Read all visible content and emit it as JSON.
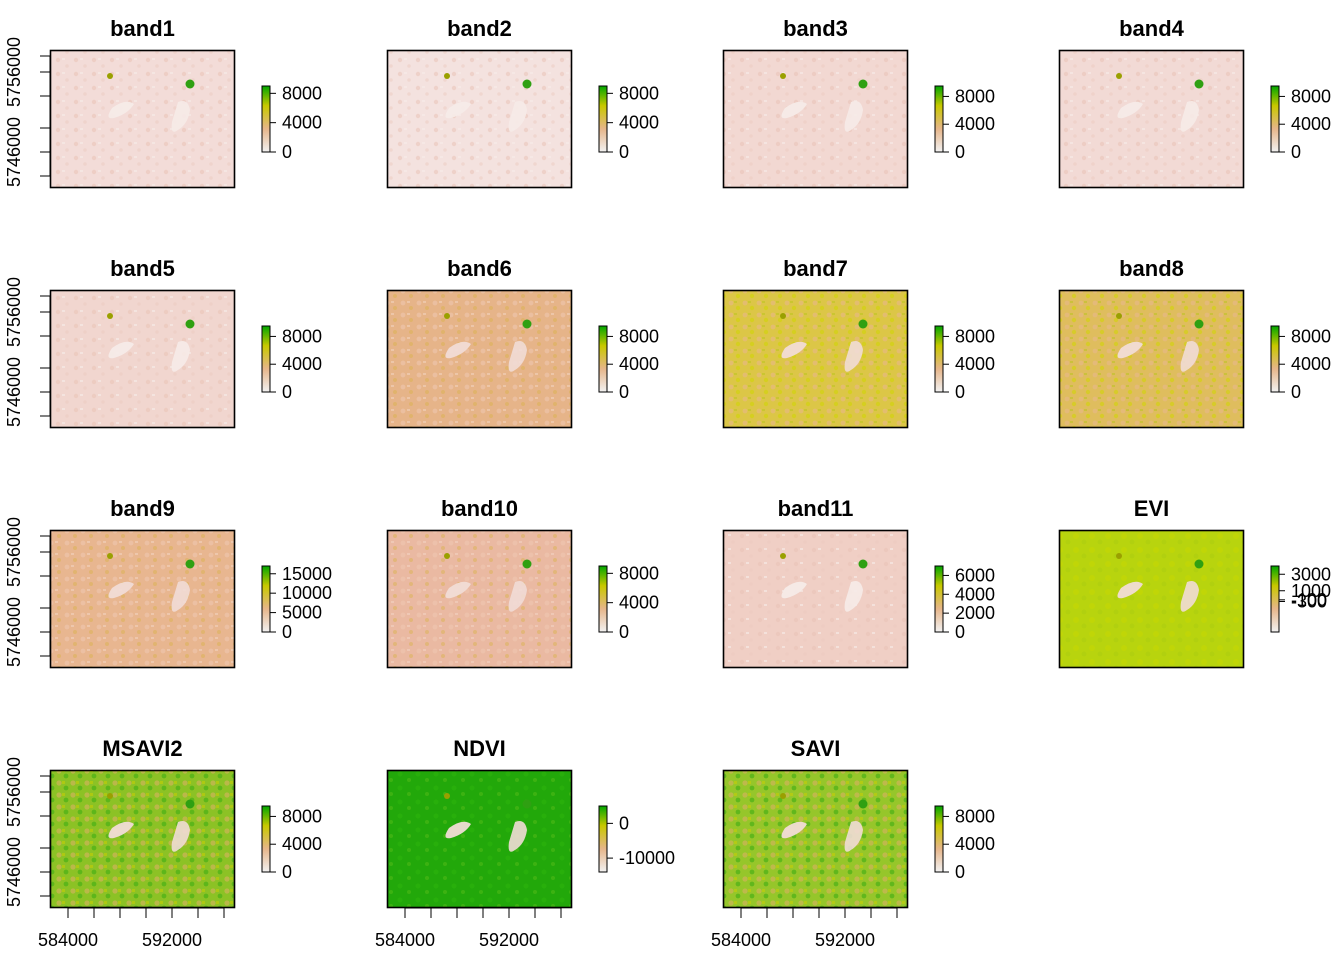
{
  "figure": {
    "background": "#ffffff",
    "frame_color": "#000000",
    "y_ticks": [
      "5756000",
      "5746000"
    ],
    "x_ticks": [
      "584000",
      "592000"
    ]
  },
  "chart_data": [
    {
      "type": "heatmap",
      "title": "band1",
      "legend": [
        "8000",
        "4000",
        "0"
      ],
      "legend_range": [
        0,
        9000
      ],
      "palette": "terrain-light",
      "base_color": "#f3dcd8"
    },
    {
      "type": "heatmap",
      "title": "band2",
      "legend": [
        "8000",
        "4000",
        "0"
      ],
      "legend_range": [
        0,
        9000
      ],
      "palette": "terrain-light",
      "base_color": "#f4e2df"
    },
    {
      "type": "heatmap",
      "title": "band3",
      "legend": [
        "8000",
        "4000",
        "0"
      ],
      "legend_range": [
        0,
        9500
      ],
      "palette": "terrain-light",
      "base_color": "#f2d8d2"
    },
    {
      "type": "heatmap",
      "title": "band4",
      "legend": [
        "8000",
        "4000",
        "0"
      ],
      "legend_range": [
        0,
        9500
      ],
      "palette": "terrain-light",
      "base_color": "#f2dad5"
    },
    {
      "type": "heatmap",
      "title": "band5",
      "legend": [
        "8000",
        "4000",
        "0"
      ],
      "legend_range": [
        0,
        9500
      ],
      "palette": "terrain-light",
      "base_color": "#f1d6cf"
    },
    {
      "type": "heatmap",
      "title": "band6",
      "legend": [
        "8000",
        "4000",
        "0"
      ],
      "legend_range": [
        0,
        9500
      ],
      "palette": "terrain-mid",
      "base_color": "#e6b489"
    },
    {
      "type": "heatmap",
      "title": "band7",
      "legend": [
        "8000",
        "4000",
        "0"
      ],
      "legend_range": [
        0,
        9500
      ],
      "palette": "terrain-yellow",
      "base_color": "#dcc647"
    },
    {
      "type": "heatmap",
      "title": "band8",
      "legend": [
        "8000",
        "4000",
        "0"
      ],
      "legend_range": [
        0,
        9500
      ],
      "palette": "terrain-yellow",
      "base_color": "#dfbd5e"
    },
    {
      "type": "heatmap",
      "title": "band9",
      "legend": [
        "15000",
        "10000",
        "5000",
        "0"
      ],
      "legend_range": [
        0,
        17000
      ],
      "palette": "terrain-mid",
      "base_color": "#e8b690"
    },
    {
      "type": "heatmap",
      "title": "band10",
      "legend": [
        "8000",
        "4000",
        "0"
      ],
      "legend_range": [
        0,
        9000
      ],
      "palette": "terrain-mid",
      "base_color": "#eab9a2"
    },
    {
      "type": "heatmap",
      "title": "band11",
      "legend": [
        "6000",
        "4000",
        "2000",
        "0"
      ],
      "legend_range": [
        0,
        7000
      ],
      "palette": "terrain-light",
      "base_color": "#f0cfc5"
    },
    {
      "type": "heatmap",
      "title": "EVI",
      "legend": [
        "3000",
        "1000",
        "-100",
        "-300"
      ],
      "legend_range": [
        -4000,
        4000
      ],
      "palette": "terrain-lime",
      "base_color": "#b8d40e"
    },
    {
      "type": "heatmap",
      "title": "MSAVI2",
      "legend": [
        "8000",
        "4000",
        "0"
      ],
      "legend_range": [
        0,
        9500
      ],
      "palette": "terrain-green",
      "base_color": "#8cc225"
    },
    {
      "type": "heatmap",
      "title": "NDVI",
      "legend": [
        "0",
        "-10000"
      ],
      "legend_range": [
        -14000,
        5000
      ],
      "palette": "terrain-dark",
      "base_color": "#22a80a"
    },
    {
      "type": "heatmap",
      "title": "SAVI",
      "legend": [
        "8000",
        "4000",
        "0"
      ],
      "legend_range": [
        0,
        9500
      ],
      "palette": "terrain-green",
      "base_color": "#96c62a"
    }
  ]
}
